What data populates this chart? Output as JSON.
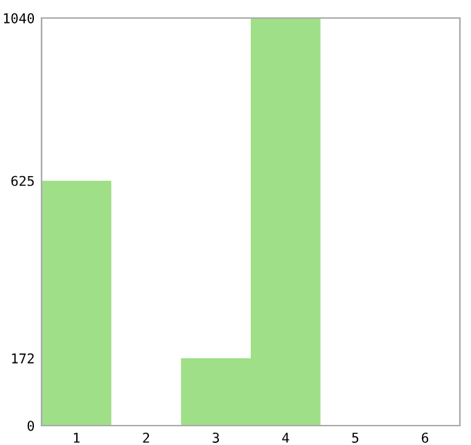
{
  "chart_data": {
    "type": "bar",
    "categories": [
      "1",
      "2",
      "3",
      "4",
      "5",
      "6"
    ],
    "values": [
      625,
      0,
      172,
      1040,
      0,
      0
    ],
    "color": "#9fdf87",
    "ylim": [
      0,
      1040
    ],
    "yticks": [
      0,
      172,
      625,
      1040
    ],
    "grid": false
  }
}
